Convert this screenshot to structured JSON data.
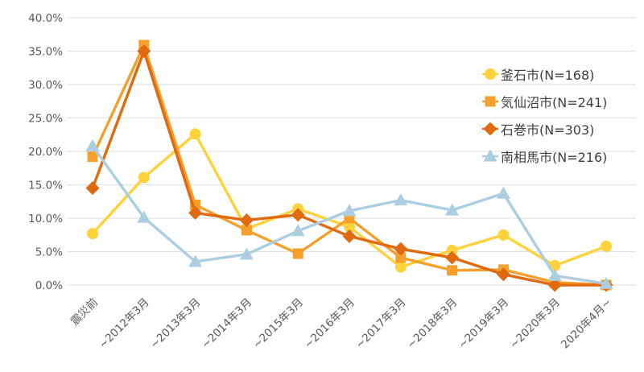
{
  "chart_data": {
    "type": "line",
    "title": "",
    "xlabel": "",
    "ylabel": "",
    "ylim": [
      0,
      40
    ],
    "ytick_step": 5,
    "ytick_suffix": "%",
    "ytick_decimals": 1,
    "grid": true,
    "grid_color": "#e3e3e3",
    "axis_label_color": "#595959",
    "legend_position": "right",
    "categories": [
      "震災前",
      "~2012年3月",
      "~2013年3月",
      "~2014年3月",
      "~2015年3月",
      "~2016年3月",
      "~2017年3月",
      "~2018年3月",
      "~2019年3月",
      "~2020年3月",
      "2020年4月~"
    ],
    "series": [
      {
        "name": "釜石市",
        "label": "釜石市(N=168)",
        "color": "#ffd13a",
        "marker": "circle",
        "values": [
          7.7,
          16.1,
          22.6,
          8.4,
          11.4,
          8.7,
          2.7,
          5.2,
          7.5,
          2.9,
          5.8
        ]
      },
      {
        "name": "気仙沼市",
        "label": "気仙沼市(N=241)",
        "color": "#f5a02c",
        "marker": "square",
        "values": [
          19.2,
          35.9,
          12.0,
          8.2,
          4.7,
          10.0,
          4.1,
          2.2,
          2.3,
          0.4,
          0.0
        ]
      },
      {
        "name": "石巻市",
        "label": "石巻市(N=303)",
        "color": "#e06a10",
        "marker": "diamond",
        "values": [
          14.5,
          35.0,
          10.8,
          9.7,
          10.5,
          7.3,
          5.4,
          4.1,
          1.6,
          0.0,
          0.0
        ]
      },
      {
        "name": "南相馬市",
        "label": "南相馬市(N=216)",
        "color": "#abcee3",
        "marker": "triangle",
        "values": [
          20.8,
          10.1,
          3.5,
          4.6,
          8.1,
          11.1,
          12.7,
          11.2,
          13.7,
          1.4,
          0.2
        ]
      }
    ]
  }
}
